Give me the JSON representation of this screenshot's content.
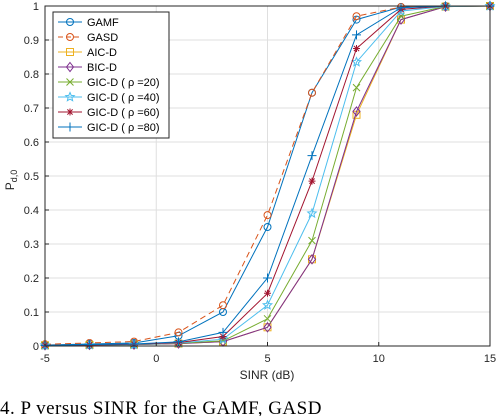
{
  "caption": "4.   P versus SINR for the GAMF, GASD",
  "chart_data": {
    "type": "line",
    "title": "",
    "xlabel": "SINR (dB)",
    "ylabel": "P",
    "ylabel_sub": "d,0",
    "xlim": [
      -5,
      15
    ],
    "ylim": [
      0,
      1
    ],
    "xticks": [
      -5,
      0,
      5,
      10,
      15
    ],
    "yticks": [
      0,
      0.1,
      0.2,
      0.3,
      0.4,
      0.5,
      0.6,
      0.7,
      0.8,
      0.9,
      1
    ],
    "grid": true,
    "legend_position": "top-left",
    "x": [
      -5,
      -3,
      -1,
      1,
      3,
      5,
      7,
      9,
      11,
      13,
      15
    ],
    "series": [
      {
        "name": "GAMF",
        "color": "#0072bd",
        "dash": "solid",
        "marker": "circle",
        "values": [
          0.003,
          0.006,
          0.009,
          0.03,
          0.1,
          0.35,
          0.745,
          0.96,
          0.997,
          1.0,
          1.0
        ]
      },
      {
        "name": "GASD",
        "color": "#d95319",
        "dash": "dashed",
        "marker": "circle",
        "values": [
          0.005,
          0.009,
          0.013,
          0.04,
          0.12,
          0.385,
          0.745,
          0.97,
          0.997,
          1.0,
          1.0
        ]
      },
      {
        "name": "AIC-D",
        "color": "#edb120",
        "dash": "solid",
        "marker": "square",
        "values": [
          0.002,
          0.003,
          0.004,
          0.007,
          0.013,
          0.055,
          0.255,
          0.68,
          0.96,
          0.998,
          1.0
        ]
      },
      {
        "name": "BIC-D",
        "color": "#7e2f8e",
        "dash": "solid",
        "marker": "diamond",
        "values": [
          0.002,
          0.003,
          0.004,
          0.007,
          0.013,
          0.055,
          0.255,
          0.69,
          0.96,
          0.998,
          1.0
        ]
      },
      {
        "name": "GIC-D ( ρ =20)",
        "color": "#77ac30",
        "dash": "solid",
        "marker": "x",
        "values": [
          0.002,
          0.003,
          0.004,
          0.008,
          0.015,
          0.08,
          0.31,
          0.76,
          0.97,
          0.999,
          1.0
        ]
      },
      {
        "name": "GIC-D ( ρ =40)",
        "color": "#4dbeee",
        "dash": "solid",
        "marker": "star",
        "values": [
          0.002,
          0.003,
          0.004,
          0.009,
          0.02,
          0.12,
          0.39,
          0.835,
          0.985,
          0.999,
          1.0
        ]
      },
      {
        "name": "GIC-D ( ρ =60)",
        "color": "#a2142f",
        "dash": "solid",
        "marker": "asterisk",
        "values": [
          0.002,
          0.003,
          0.005,
          0.01,
          0.028,
          0.155,
          0.485,
          0.875,
          0.99,
          1.0,
          1.0
        ]
      },
      {
        "name": "GIC-D ( ρ =80)",
        "color": "#0072bd",
        "dash": "solid",
        "marker": "plus",
        "values": [
          0.002,
          0.004,
          0.006,
          0.012,
          0.04,
          0.2,
          0.56,
          0.915,
          0.995,
          1.0,
          1.0
        ]
      }
    ]
  }
}
